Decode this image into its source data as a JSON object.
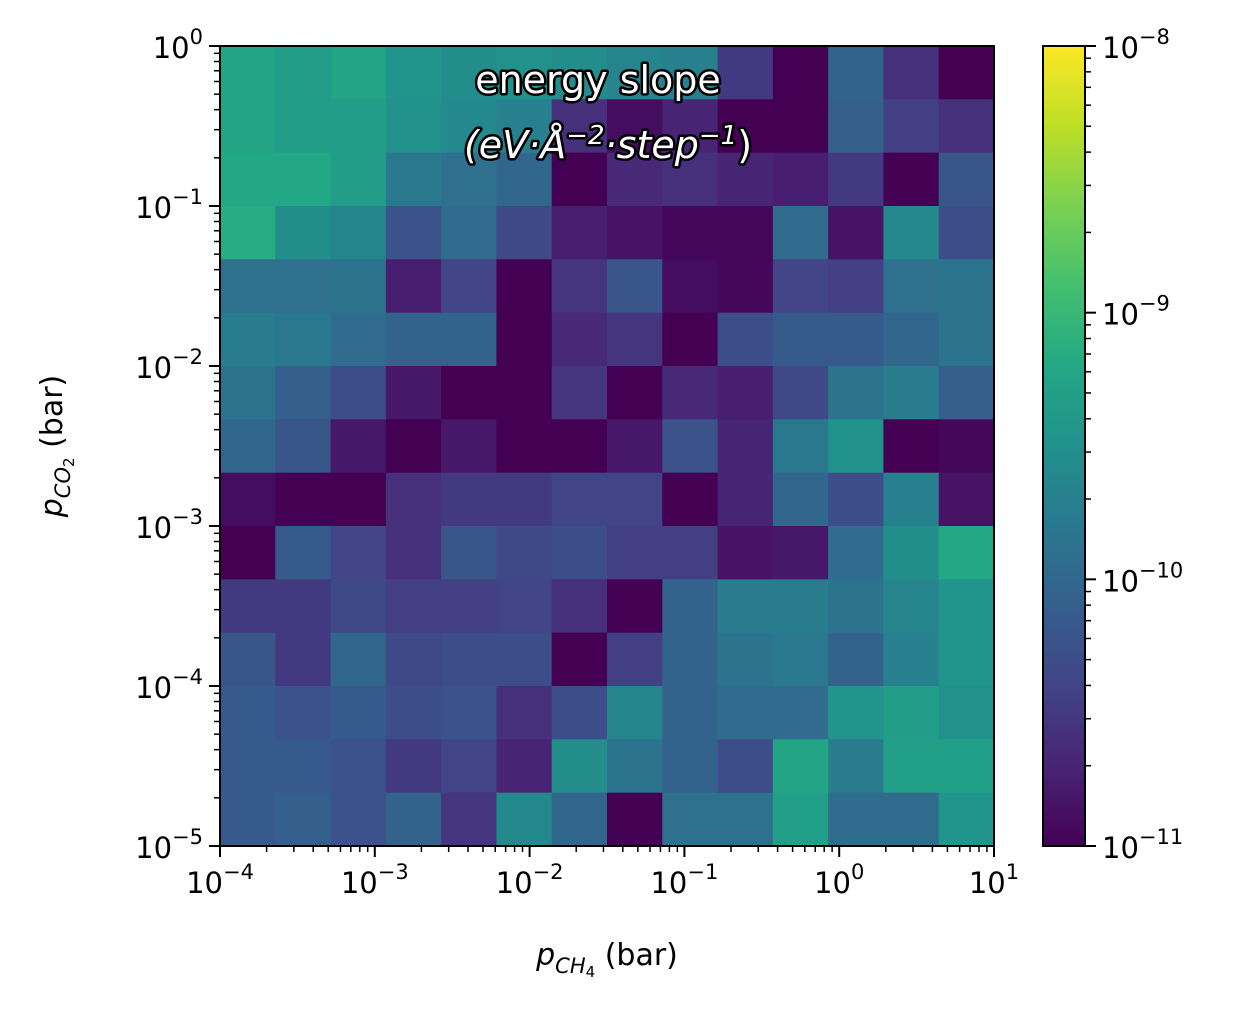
{
  "chart_data": {
    "type": "heatmap",
    "title_line1": "energy slope",
    "title_line2_parts": [
      "(eV·Å",
      "−2",
      "·step",
      "−1",
      ")"
    ],
    "xlabel_var": "p",
    "xlabel_sub": "CH",
    "xlabel_sub2": "4",
    "xlabel_unit": " (bar)",
    "ylabel_var": "p",
    "ylabel_sub": "CO",
    "ylabel_sub2": "2",
    "ylabel_unit": " (bar)",
    "x_scale": "log",
    "y_scale": "log",
    "xlim": [
      0.0001,
      10
    ],
    "ylim": [
      1e-05,
      1
    ],
    "x_ticks": [
      {
        "base": "10",
        "exp": "−4"
      },
      {
        "base": "10",
        "exp": "−3"
      },
      {
        "base": "10",
        "exp": "−2"
      },
      {
        "base": "10",
        "exp": "−1"
      },
      {
        "base": "10",
        "exp": "0"
      },
      {
        "base": "10",
        "exp": "1"
      }
    ],
    "y_ticks": [
      {
        "base": "10",
        "exp": "−5"
      },
      {
        "base": "10",
        "exp": "−4"
      },
      {
        "base": "10",
        "exp": "−3"
      },
      {
        "base": "10",
        "exp": "−2"
      },
      {
        "base": "10",
        "exp": "−1"
      },
      {
        "base": "10",
        "exp": "0"
      }
    ],
    "colorbar": {
      "scale": "log",
      "range": [
        1e-11,
        1e-08
      ],
      "colormap": "viridis",
      "ticks": [
        {
          "base": "10",
          "exp": "−11"
        },
        {
          "base": "10",
          "exp": "−10"
        },
        {
          "base": "10",
          "exp": "−9"
        },
        {
          "base": "10",
          "exp": "−8"
        }
      ]
    },
    "grid": false,
    "x_bins": 14,
    "y_bins": 15,
    "log10_values_rows_top_to_bottom": [
      [
        -9.25,
        -9.35,
        -9.25,
        -9.45,
        -9.55,
        -9.5,
        -9.55,
        -9.65,
        -9.7,
        -10.5,
        -11.0,
        -10.05,
        -10.6,
        -11.0
      ],
      [
        -9.25,
        -9.35,
        -9.35,
        -9.5,
        -9.6,
        -9.7,
        -10.6,
        -10.9,
        -10.7,
        -11.0,
        -11.0,
        -10.1,
        -10.45,
        -10.6
      ],
      [
        -9.2,
        -9.2,
        -9.35,
        -9.8,
        -9.9,
        -10.0,
        -11.0,
        -10.65,
        -10.6,
        -10.7,
        -10.75,
        -10.5,
        -11.0,
        -10.2
      ],
      [
        -9.15,
        -9.55,
        -9.65,
        -10.25,
        -9.95,
        -10.35,
        -10.75,
        -10.85,
        -10.95,
        -10.95,
        -9.95,
        -10.85,
        -9.6,
        -10.3
      ],
      [
        -9.9,
        -9.9,
        -9.85,
        -10.75,
        -10.4,
        -11.0,
        -10.55,
        -10.2,
        -10.9,
        -10.95,
        -10.4,
        -10.45,
        -9.9,
        -9.85
      ],
      [
        -9.75,
        -9.8,
        -9.95,
        -10.05,
        -10.05,
        -11.0,
        -10.65,
        -10.55,
        -11.0,
        -10.3,
        -10.15,
        -10.15,
        -10.0,
        -9.85
      ],
      [
        -9.85,
        -10.1,
        -10.3,
        -10.8,
        -11.0,
        -11.0,
        -10.55,
        -11.0,
        -10.65,
        -10.75,
        -10.35,
        -9.85,
        -9.75,
        -10.1
      ],
      [
        -10.0,
        -10.2,
        -10.8,
        -11.0,
        -10.8,
        -11.0,
        -11.0,
        -10.8,
        -10.25,
        -10.7,
        -9.8,
        -9.5,
        -11.0,
        -10.95
      ],
      [
        -10.9,
        -11.0,
        -11.0,
        -10.6,
        -10.5,
        -10.5,
        -10.4,
        -10.4,
        -11.0,
        -10.7,
        -10.0,
        -10.3,
        -9.7,
        -10.85
      ],
      [
        -11.0,
        -10.15,
        -10.4,
        -10.6,
        -10.2,
        -10.35,
        -10.3,
        -10.45,
        -10.45,
        -10.85,
        -10.8,
        -9.95,
        -9.55,
        -9.2
      ],
      [
        -10.5,
        -10.5,
        -10.35,
        -10.45,
        -10.45,
        -10.4,
        -10.6,
        -11.0,
        -10.05,
        -9.75,
        -9.75,
        -9.85,
        -9.65,
        -9.45
      ],
      [
        -10.2,
        -10.5,
        -10.0,
        -10.35,
        -10.3,
        -10.3,
        -11.0,
        -10.45,
        -10.05,
        -9.85,
        -9.8,
        -10.05,
        -9.7,
        -9.45
      ],
      [
        -10.15,
        -10.25,
        -10.15,
        -10.3,
        -10.25,
        -10.6,
        -10.3,
        -9.65,
        -10.05,
        -9.95,
        -9.95,
        -9.45,
        -9.35,
        -9.5
      ],
      [
        -10.15,
        -10.15,
        -10.25,
        -10.5,
        -10.4,
        -10.7,
        -9.55,
        -9.85,
        -10.05,
        -10.3,
        -9.25,
        -9.75,
        -9.3,
        -9.3
      ],
      [
        -10.15,
        -10.1,
        -10.25,
        -10.05,
        -10.55,
        -9.6,
        -10.0,
        -11.0,
        -9.9,
        -9.9,
        -9.3,
        -9.95,
        -9.95,
        -9.45
      ]
    ]
  }
}
